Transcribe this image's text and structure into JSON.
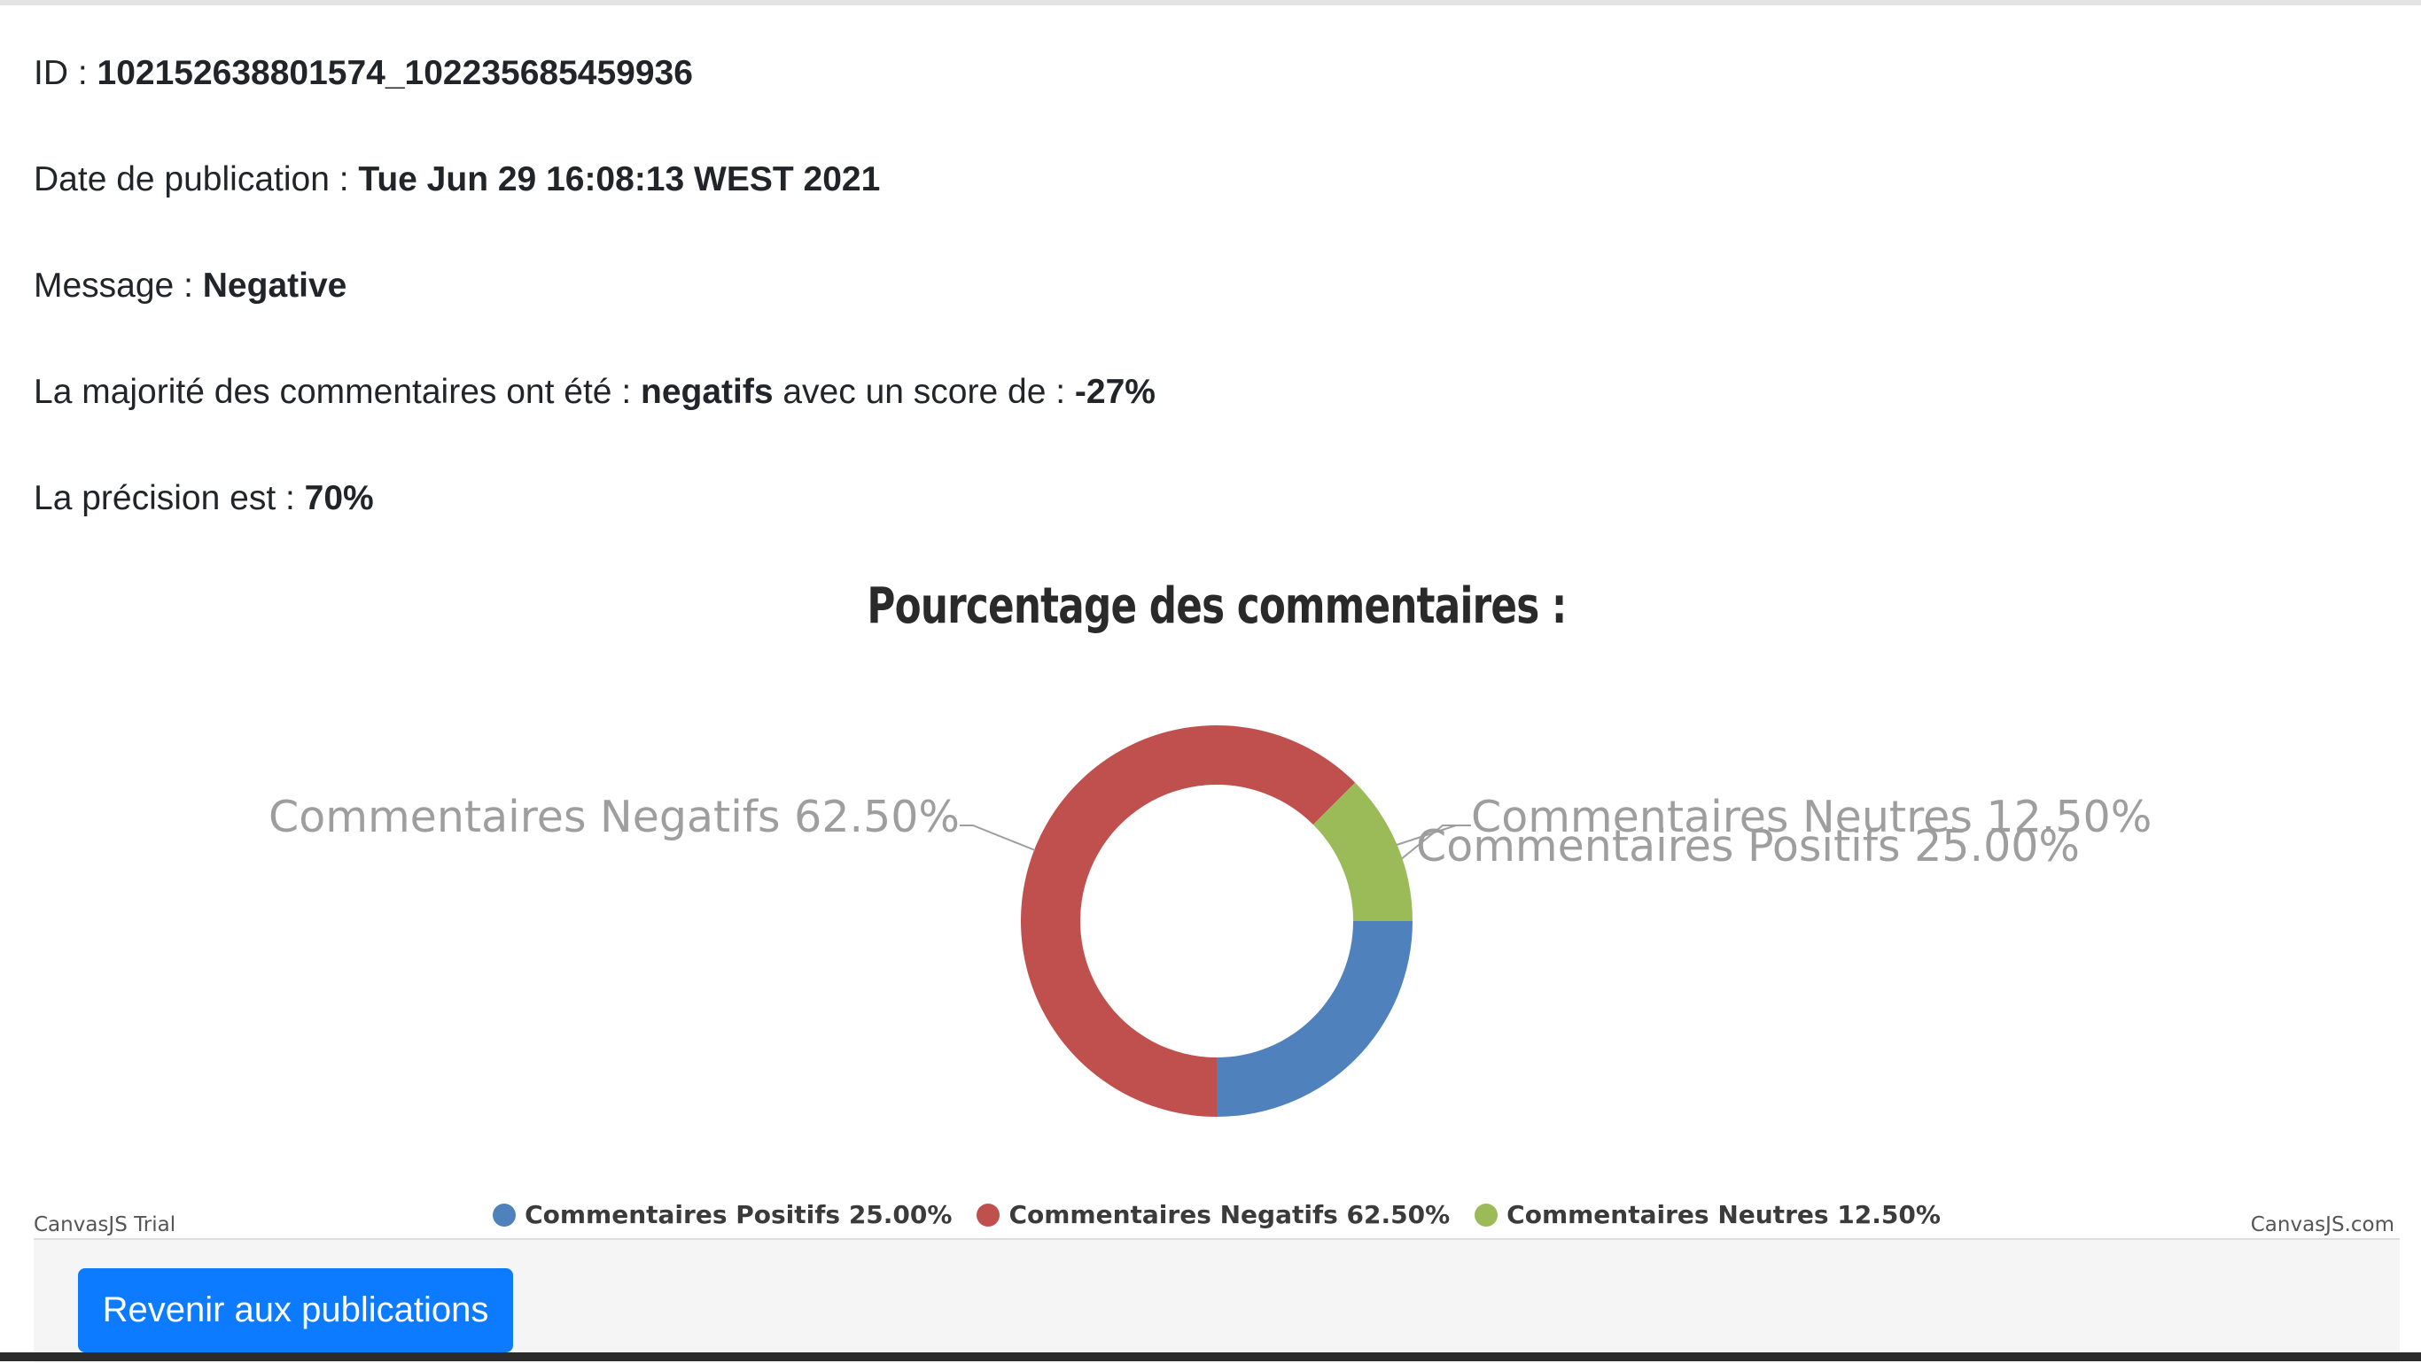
{
  "info": {
    "id_label": "ID : ",
    "id_value": "102152638801574_102235685459936",
    "date_label": "Date de publication : ",
    "date_value": "Tue Jun 29 16:08:13 WEST 2021",
    "message_label": "Message : ",
    "message_value": "Negative",
    "majority_prefix": "La majorité des commentaires ont été : ",
    "majority_value": "negatifs",
    "majority_middle": " avec un score de : ",
    "score_value": "-27%",
    "precision_label": "La précision est : ",
    "precision_value": "70%"
  },
  "chart_data": {
    "type": "pie",
    "title": "Pourcentage des commentaires :",
    "legend_position": "bottom",
    "slices": [
      {
        "name": "Commentaires Positifs",
        "value": 25.0,
        "label": "Commentaires Positifs 25.00%",
        "color": "#4f81bc"
      },
      {
        "name": "Commentaires Negatifs",
        "value": 62.5,
        "label": "Commentaires Negatifs 62.50%",
        "color": "#c0504e"
      },
      {
        "name": "Commentaires Neutres",
        "value": 12.5,
        "label": "Commentaires Neutres 12.50%",
        "color": "#9bbb58"
      }
    ]
  },
  "credits": {
    "left": "CanvasJS Trial",
    "right": "CanvasJS.com"
  },
  "footer": {
    "back_button_label": "Revenir aux publications"
  }
}
